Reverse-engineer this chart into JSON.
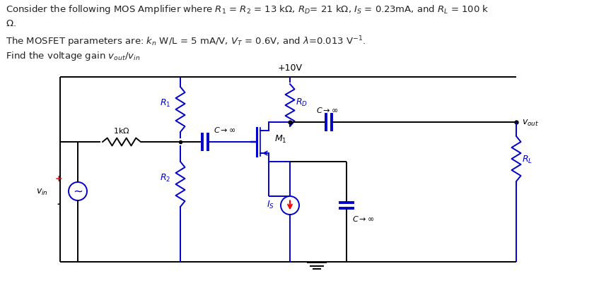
{
  "bg_color": "#ffffff",
  "circuit_color": "#0000cc",
  "wire_color": "#000000",
  "vdd_label": "+10V",
  "r1_label": "$R_1$",
  "r2_label": "$R_2$",
  "rd_label": "$R_D$",
  "rl_label": "$R_L$",
  "is_label": "$I_S$",
  "m1_label": "$M_1$",
  "c_inf": "$C \\to \\infty$",
  "vout_label": "$v_{out}$",
  "vin_label": "$v_{in}$",
  "res1k_label": "1k$\\Omega$",
  "line1": "Consider the following MOS Amplifier where $R_1$ = $R_2$ = 13 k$\\Omega$, $R_D$= 21 k$\\Omega$, $I_S$ = 0.23mA, and $R_L$ = 100 k",
  "line2": "$\\Omega$.",
  "line3": "The MOSFET parameters are: $k_n$ W/L = 5 mA/V, $V_T$ = 0.6V, and $\\lambda$=0.013 V$^{-1}$.",
  "line4": "Find the voltage gain $v_{out}$/$v_{in}$"
}
